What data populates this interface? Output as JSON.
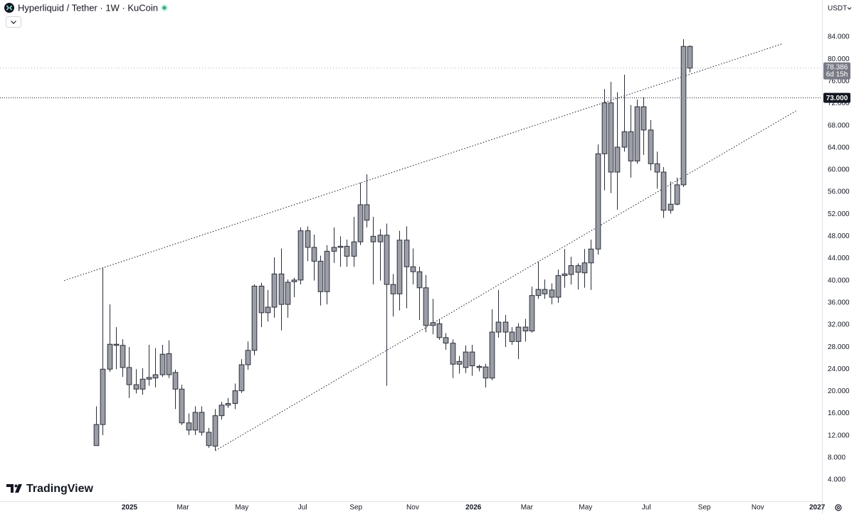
{
  "chart_data": {
    "type": "candlestick",
    "title": "Hyperliquid / Tether · 1W · KuCoin",
    "currency": "USDT",
    "logo": "TradingView",
    "color": "#9b9ea6",
    "outline": "#2a2e39",
    "grid": false,
    "open": [
      10.2,
      14,
      24,
      28.5,
      28.3,
      24.3,
      21.2,
      20.4,
      22.2,
      22.4,
      23,
      26.8,
      23.4,
      20.4,
      14.3,
      13,
      16.2,
      12.6,
      10.1,
      15.6,
      17.5,
      17.8,
      20.1,
      24.8,
      27.4,
      39,
      34.2,
      35.2,
      41.2,
      35.7,
      39.8,
      40.1,
      49,
      46,
      43.5,
      38,
      45.3,
      46,
      46.2,
      44.4,
      47,
      53.7,
      48,
      47,
      48.2,
      39.3,
      37.6,
      47.3,
      42.5,
      41.6,
      38.7,
      31.9,
      32.2,
      29.7,
      28.7,
      24.9,
      24.3,
      27.1,
      24.5,
      24.4,
      22.4,
      30.7,
      32.5,
      30.7,
      29,
      30.9,
      30.9,
      37.3,
      38.4,
      38.3,
      37,
      40.9,
      41.1,
      42.7,
      41.4,
      43.2,
      45.7,
      62.9,
      72.1,
      59.6,
      64.1,
      66.9,
      61.6,
      71.4,
      67.2,
      61.1,
      59.6,
      52.7,
      53.8,
      57.3,
      82.3
    ],
    "high": [
      17.3,
      42.3,
      35.7,
      31.6,
      29.4,
      28,
      24,
      24.2,
      28.4,
      27.8,
      28.4,
      29.2,
      23.9,
      21.2,
      16,
      17.3,
      17.3,
      13.4,
      16.8,
      18.1,
      18.8,
      21.4,
      25.8,
      29,
      39.3,
      39.6,
      38.3,
      44.2,
      45.8,
      40.2,
      40.5,
      49.6,
      49.8,
      48.3,
      44.5,
      46.4,
      49.6,
      48,
      47.4,
      51.5,
      57.7,
      59.2,
      51.5,
      49.3,
      50.3,
      41.2,
      49,
      49.8,
      45.8,
      42.5,
      41,
      36.7,
      33.1,
      30.5,
      29.4,
      26.4,
      28.3,
      28.4,
      24.8,
      25,
      34.8,
      38.3,
      33.8,
      31.6,
      32.3,
      33.1,
      38.9,
      43.4,
      40.2,
      39.5,
      42,
      45.7,
      44.3,
      43.1,
      45.7,
      47.4,
      64.6,
      74.6,
      75.9,
      74,
      77.2,
      71.7,
      72.7,
      73.1,
      69,
      63.3,
      60.5,
      57.9,
      58.6,
      83.6,
      82.5
    ],
    "low": [
      10.2,
      12.1,
      23.5,
      24,
      22.6,
      18.8,
      19.6,
      19.4,
      21,
      20.7,
      22.6,
      22.4,
      16.8,
      13.9,
      12.1,
      12.1,
      12,
      9.8,
      9.3,
      14.9,
      17,
      16.8,
      19.7,
      23.9,
      26.5,
      31.6,
      32.6,
      33.3,
      31,
      33.3,
      37,
      39.3,
      43.5,
      40,
      35.5,
      35.7,
      43.2,
      42.5,
      42.5,
      42.5,
      46.4,
      49.6,
      39.3,
      40,
      21,
      33.5,
      34.6,
      35,
      39.3,
      32.9,
      30.7,
      30.3,
      29.3,
      27.5,
      22.4,
      23.2,
      23.3,
      22.8,
      23.6,
      20.7,
      22,
      29.7,
      28,
      28.4,
      25.8,
      29,
      30.6,
      36.7,
      36.7,
      35.7,
      36,
      38.7,
      39.3,
      38.4,
      38.7,
      38.3,
      44.7,
      56.3,
      55.8,
      52.8,
      63.3,
      58.6,
      61.1,
      62.7,
      59.9,
      56.6,
      51.3,
      52.1,
      53.6,
      56.9,
      77.6
    ],
    "close": [
      14,
      24,
      28.5,
      28.3,
      24.3,
      21.2,
      20.4,
      22.2,
      22.5,
      23,
      26.7,
      23,
      20.4,
      14.3,
      13,
      16.2,
      12.6,
      10.2,
      15.6,
      17.5,
      17.8,
      20.1,
      24.8,
      27.4,
      39,
      34.2,
      35.2,
      41.2,
      35.7,
      39.7,
      40.1,
      49,
      46,
      43.5,
      38,
      45.3,
      46,
      46.2,
      44.4,
      47,
      53.7,
      50.9,
      47,
      48.2,
      39.3,
      37.6,
      47.3,
      42.5,
      41.6,
      38.7,
      31.9,
      32.4,
      29.7,
      28.7,
      24.9,
      25.4,
      27.1,
      24.6,
      24.3,
      22.4,
      30.7,
      32.5,
      30.7,
      29,
      31.6,
      31.6,
      37.3,
      38.4,
      37.6,
      37,
      40.9,
      41.2,
      42.7,
      41.5,
      43.2,
      45.7,
      62.9,
      72.1,
      59.6,
      64.1,
      66.9,
      61.6,
      71.4,
      67.2,
      61.1,
      59.6,
      52.7,
      53.8,
      57.3,
      82.3,
      78.386
    ],
    "xlim": [
      -14.56,
      110.03
    ],
    "xticks": [
      {
        "value": 5.07,
        "label": "2025"
      },
      {
        "value": 13.16,
        "label": "Mar"
      },
      {
        "value": 22.1,
        "label": "May"
      },
      {
        "value": 31.3,
        "label": "Jul"
      },
      {
        "value": 39.4,
        "label": "Sep"
      },
      {
        "value": 48.0,
        "label": "Nov"
      },
      {
        "value": 57.2,
        "label": "2026"
      },
      {
        "value": 65.3,
        "label": "Mar"
      },
      {
        "value": 74.2,
        "label": "May"
      },
      {
        "value": 83.4,
        "label": "Jul"
      },
      {
        "value": 92.2,
        "label": "Sep"
      },
      {
        "value": 100.3,
        "label": "Nov"
      },
      {
        "value": 109.3,
        "label": "2027"
      }
    ],
    "ylim": [
      0.15,
      90.68
    ],
    "yticks": [
      {
        "value": 4,
        "label": "4.000"
      },
      {
        "value": 8,
        "label": "8.000"
      },
      {
        "value": 12,
        "label": "12.000"
      },
      {
        "value": 16,
        "label": "16.000"
      },
      {
        "value": 20,
        "label": "20.000"
      },
      {
        "value": 24,
        "label": "24.000"
      },
      {
        "value": 28,
        "label": "28.000"
      },
      {
        "value": 32,
        "label": "32.000"
      },
      {
        "value": 36,
        "label": "36.000"
      },
      {
        "value": 40,
        "label": "40.000"
      },
      {
        "value": 44,
        "label": "44.000"
      },
      {
        "value": 48,
        "label": "48.000"
      },
      {
        "value": 52,
        "label": "52.000"
      },
      {
        "value": 56,
        "label": "56.000"
      },
      {
        "value": 60,
        "label": "60.000"
      },
      {
        "value": 64,
        "label": "64.000"
      },
      {
        "value": 68,
        "label": "68.000"
      },
      {
        "value": 72,
        "label": "72.000"
      },
      {
        "value": 76,
        "label": "76.000"
      },
      {
        "value": 80,
        "label": "80.000"
      },
      {
        "value": 84,
        "label": "84.000"
      }
    ],
    "last_price": 78.386,
    "countdown": "6d 15h",
    "horizontal_line": {
      "value": 73,
      "label": "73.000"
    },
    "trendlines": [
      {
        "x": [
          -4.85,
          104.1
        ],
        "y": [
          40.0,
          82.8
        ]
      },
      {
        "x": [
          18.1,
          106.3
        ],
        "y": [
          9.3,
          70.8
        ]
      }
    ]
  }
}
